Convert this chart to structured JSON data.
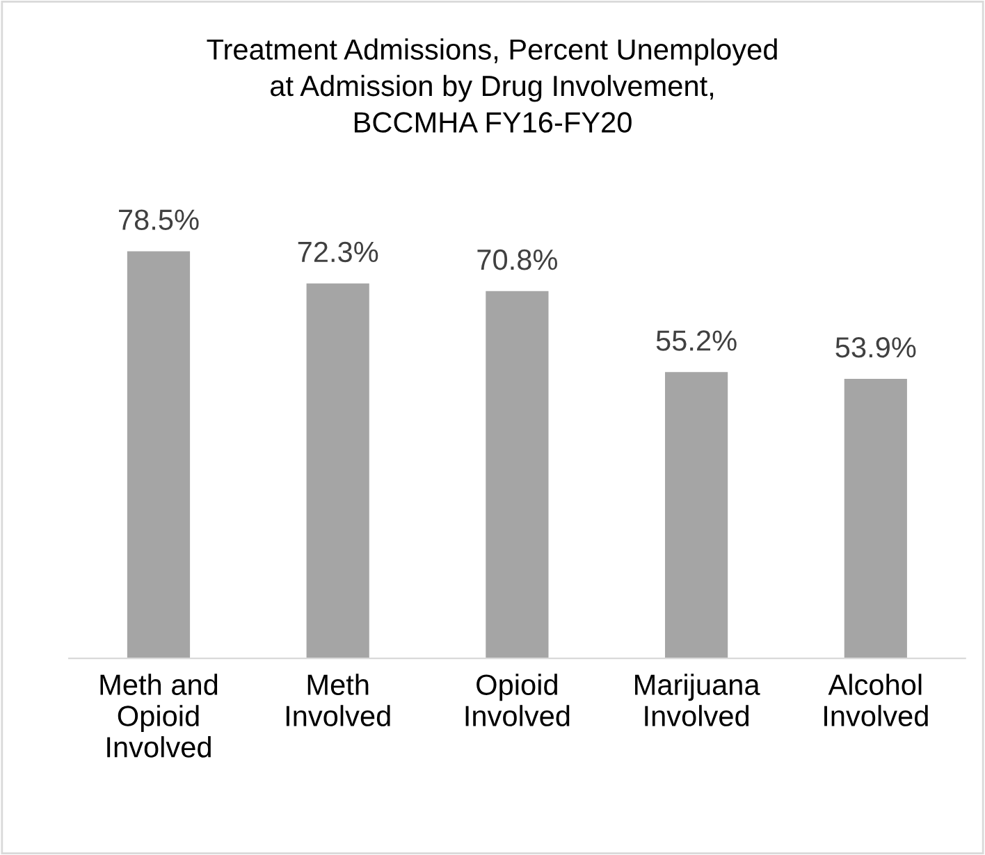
{
  "chart_data": {
    "type": "bar",
    "title": "Treatment Admissions, Percent Unemployed\nat Admission by Drug Involvement,\nBCCMHA FY16-FY20",
    "categories": [
      "Meth and\nOpioid\nInvolved",
      "Meth\nInvolved",
      "Opioid\nInvolved",
      "Marijuana\nInvolved",
      "Alcohol\nInvolved"
    ],
    "values": [
      78.5,
      72.3,
      70.8,
      55.2,
      53.9
    ],
    "value_labels": [
      "78.5%",
      "72.3%",
      "70.8%",
      "55.2%",
      "53.9%"
    ],
    "color": "#a5a5a5"
  }
}
